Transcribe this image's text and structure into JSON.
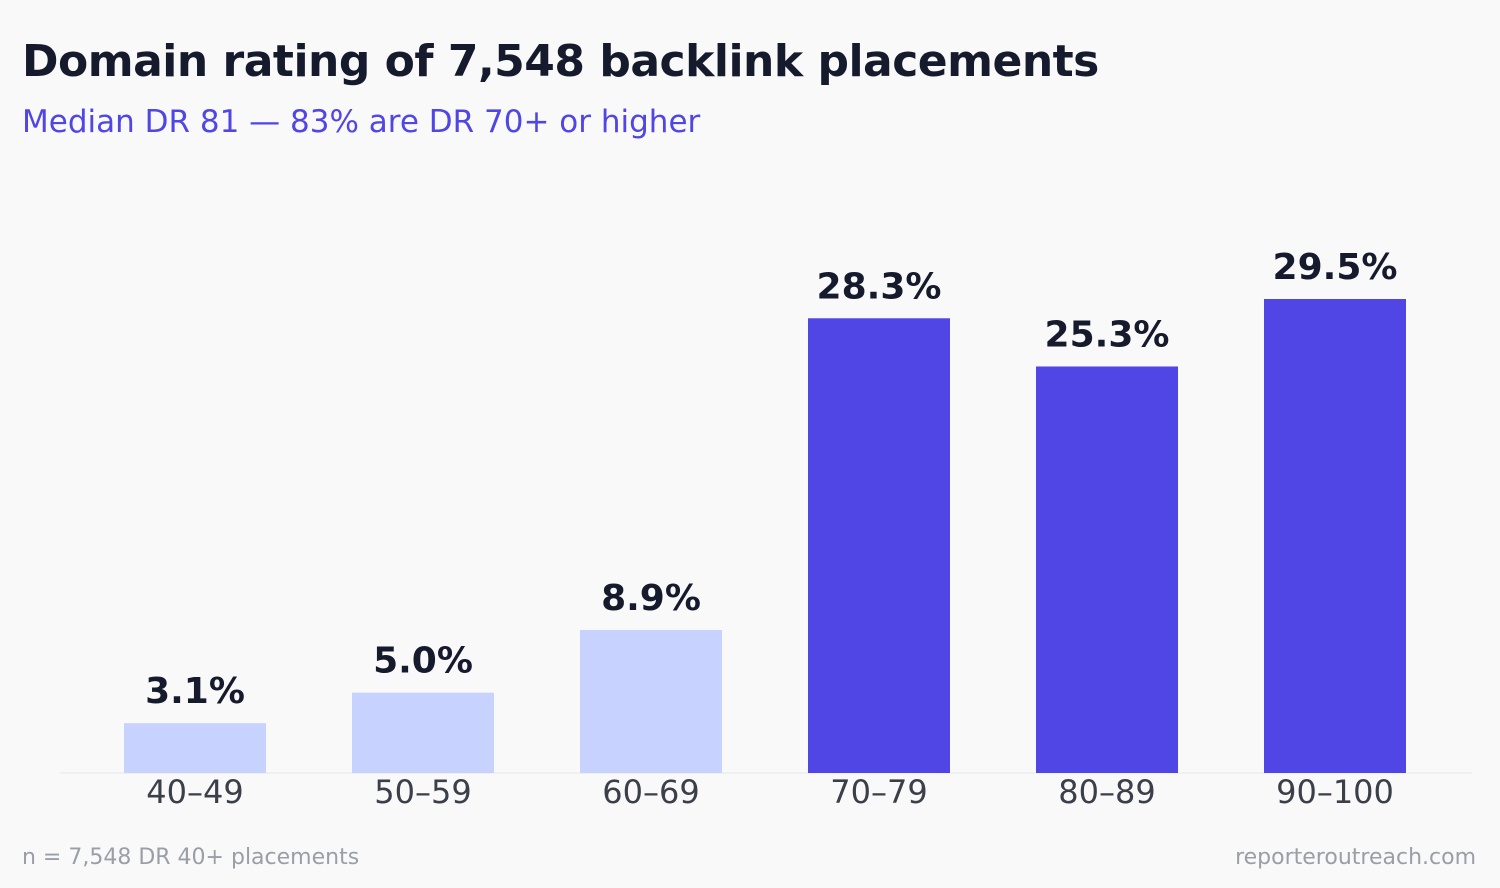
{
  "chart_data": {
    "type": "bar",
    "title": "Domain rating of 7,548 backlink placements",
    "subtitle": "Median DR 81 — 83% are DR 70+ or higher",
    "categories": [
      "40–49",
      "50–59",
      "60–69",
      "70–79",
      "80–89",
      "90–100"
    ],
    "values": [
      3.1,
      5.0,
      8.9,
      28.3,
      25.3,
      29.5
    ],
    "data_labels": [
      "3.1%",
      "5.0%",
      "8.9%",
      "28.3%",
      "25.3%",
      "29.5%"
    ],
    "ylim": [
      0,
      29.5
    ],
    "grid": false,
    "legend": "none",
    "colors": {
      "low": "#c7d2fe",
      "high": "#4f46e5",
      "axis": "#e5e7eb"
    },
    "highlight_from_index": 3
  },
  "footer": {
    "note": "n = 7,548 DR 40+ placements",
    "source": "reporteroutreach.com"
  }
}
